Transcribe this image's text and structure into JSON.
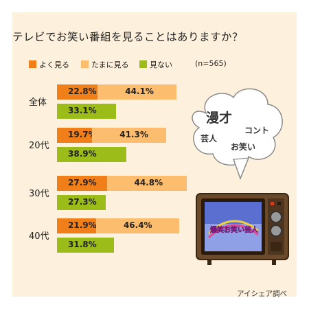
{
  "chart_data": {
    "type": "bar",
    "orientation": "horizontal",
    "title": "テレビでお笑い番組を見ることはありますか？",
    "categories": [
      "全体",
      "20代",
      "30代",
      "40代"
    ],
    "series": [
      {
        "name": "よく見る",
        "values": [
          22.8,
          19.7,
          27.9,
          21.9
        ]
      },
      {
        "name": "たまに見る",
        "values": [
          44.1,
          41.3,
          44.8,
          46.4
        ]
      },
      {
        "name": "見ない",
        "values": [
          33.1,
          38.9,
          27.3,
          31.8
        ]
      }
    ],
    "stacked_first_two": true,
    "value_suffix": "%",
    "xlim": [
      0,
      100
    ],
    "grid": false,
    "legend_position": "top-left",
    "sample_note": "(n=565)",
    "colors": {
      "often": "#f07f1a",
      "sometimes": "#fdbd6e",
      "never": "#9cbc1a",
      "background": "#fdf0dc"
    }
  },
  "bubble": {
    "words": [
      "漫才",
      "コント",
      "芸人",
      "お笑い"
    ]
  },
  "tv": {
    "screen_text": "爆笑お笑い芸人"
  },
  "footer": {
    "source": "アイシェア調べ"
  }
}
